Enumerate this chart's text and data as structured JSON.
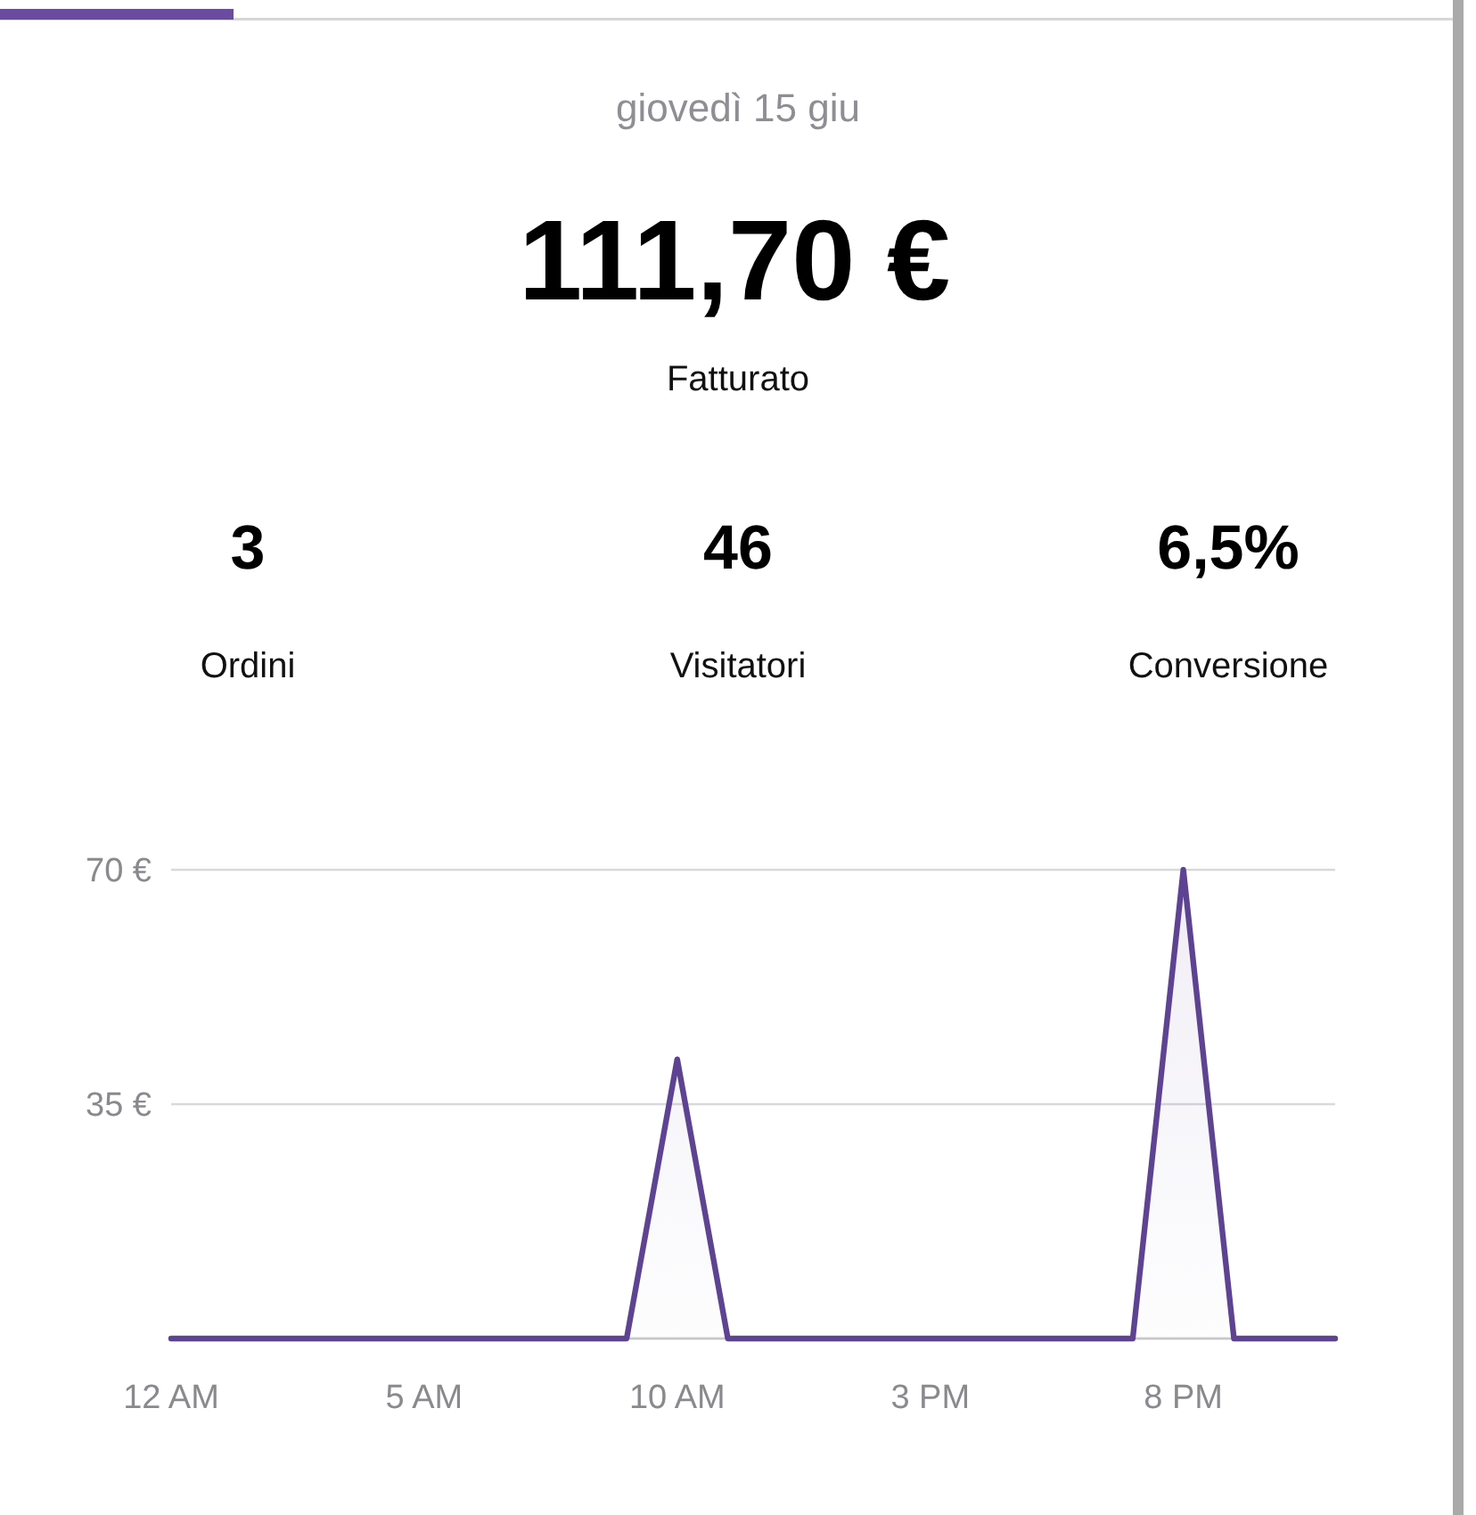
{
  "chart_data": {
    "type": "area",
    "title": "giovedì 15 giu",
    "annotations": [
      "111,70 €",
      "Fatturato",
      "3",
      "Ordini",
      "46",
      "Visitatori",
      "6,5%",
      "Conversione"
    ],
    "categories": [
      "12 AM",
      null,
      null,
      null,
      null,
      "5 AM",
      null,
      null,
      null,
      null,
      "10 AM",
      null,
      null,
      null,
      null,
      "3 PM",
      null,
      null,
      null,
      null,
      "8 PM",
      null,
      null,
      null
    ],
    "series": [
      {
        "color": "#5e4393",
        "values": [
          0,
          0,
          0,
          0,
          0,
          0,
          0,
          0,
          0,
          0,
          41.7,
          0,
          0,
          0,
          0,
          0,
          0,
          0,
          0,
          0,
          70,
          0,
          0,
          0
        ]
      }
    ],
    "ylim": [
      0,
      70
    ],
    "yticks": [
      {
        "value": 0,
        "label": null
      },
      {
        "value": 35,
        "label": "35 €"
      },
      {
        "value": 70,
        "label": "70 €"
      }
    ],
    "grid": "y"
  }
}
